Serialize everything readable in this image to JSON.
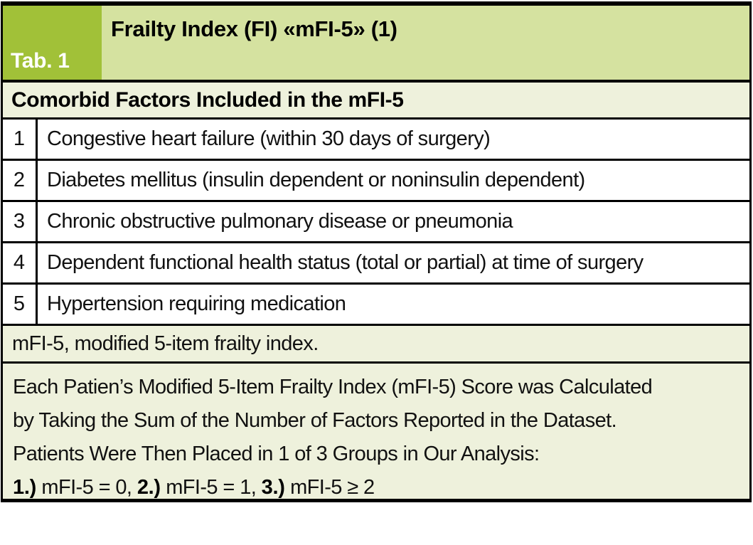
{
  "table": {
    "tab_label": "Tab. 1",
    "title": "Frailty Index (FI) «mFI-5» (1)",
    "section_header": "Comorbid Factors Included in the mFI-5",
    "rows": [
      {
        "num": "1",
        "text": "Congestive heart failure (within 30 days of surgery)"
      },
      {
        "num": "2",
        "text": "Diabetes mellitus (insulin dependent or noninsulin dependent)"
      },
      {
        "num": "3",
        "text": "Chronic obstructive pulmonary disease or pneumonia"
      },
      {
        "num": "4",
        "text": "Dependent functional health status (total or partial) at time of surgery"
      },
      {
        "num": "5",
        "text": "Hypertension requiring medication"
      }
    ],
    "abbreviation_note": "mFI-5, modified 5-item frailty index.",
    "method_note": {
      "line1": "Each Patien’s Modified 5-Item Frailty Index (mFI-5) Score was Calculated",
      "line2": "by Taking the Sum of the Number of Factors Reported in the Dataset.",
      "line3": "Patients Were Then Placed in 1 of 3 Groups in Our Analysis:",
      "groups": [
        {
          "label": "1.)",
          "text": " mFI-5 = 0, "
        },
        {
          "label": "2.)",
          "text": " mFI-5 = 1, "
        },
        {
          "label": "3.)",
          "text": " mFI-5 ≥ 2"
        }
      ]
    },
    "colors": {
      "accent_green": "#a1c138",
      "light_green": "#d5e2a0",
      "cream": "#eef1dc",
      "border": "#000000"
    }
  }
}
